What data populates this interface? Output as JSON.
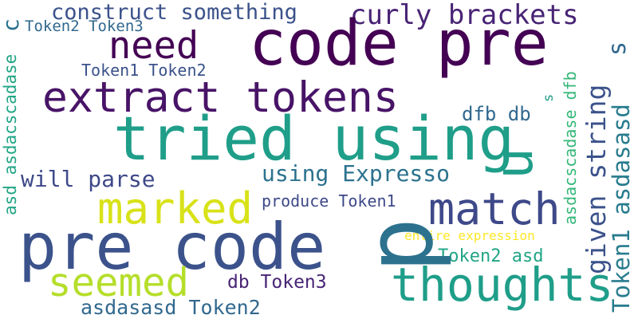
{
  "words": [
    {
      "id": "w1",
      "text": "construct something",
      "color": "#3b528b"
    },
    {
      "id": "w2",
      "text": "curly brackets",
      "color": "#482475"
    },
    {
      "id": "w3",
      "text": "Token2 Token3",
      "color": "#31688e"
    },
    {
      "id": "w4",
      "text": "need",
      "color": "#440154"
    },
    {
      "id": "w5",
      "text": "code pre",
      "color": "#440154"
    },
    {
      "id": "w6",
      "text": "Token1 Token2",
      "color": "#3b528b"
    },
    {
      "id": "w7",
      "text": "extract tokens",
      "color": "#481467"
    },
    {
      "id": "w8",
      "text": "dfb db",
      "color": "#31688e"
    },
    {
      "id": "w9",
      "text": "tried using",
      "color": "#1f9e89"
    },
    {
      "id": "w10",
      "text": "using Expresso",
      "color": "#2c728e"
    },
    {
      "id": "w11",
      "text": "will parse",
      "color": "#3e4989"
    },
    {
      "id": "w12",
      "text": "marked",
      "color": "#d8e219"
    },
    {
      "id": "w13",
      "text": "produce Token1",
      "color": "#3e4989"
    },
    {
      "id": "w14",
      "text": "match",
      "color": "#3e4989"
    },
    {
      "id": "w15",
      "text": "pre code",
      "color": "#3b528b"
    },
    {
      "id": "w16",
      "text": "entire expression",
      "color": "#fde725"
    },
    {
      "id": "w17",
      "text": "Token2 asd",
      "color": "#21a585"
    },
    {
      "id": "w18",
      "text": "seemed",
      "color": "#b5de2b"
    },
    {
      "id": "w19",
      "text": "thoughts",
      "color": "#1f9e89"
    },
    {
      "id": "w20",
      "text": "db Token3",
      "color": "#482475"
    },
    {
      "id": "w21",
      "text": "asdasasd Token2",
      "color": "#31688e"
    },
    {
      "id": "w22",
      "text": "p",
      "color": "#2c728e"
    },
    {
      "id": "w23",
      "text": "asd asdacscadase",
      "color": "#21a585"
    },
    {
      "id": "w24",
      "text": "asdacscadase dfb",
      "color": "#35b779"
    },
    {
      "id": "w25",
      "text": "given string",
      "color": "#3b528b"
    },
    {
      "id": "w26",
      "text": "Token1 asdasasd",
      "color": "#287c8e"
    },
    {
      "id": "w27",
      "text": "c",
      "color": "#2c728e"
    },
    {
      "id": "w28",
      "text": "u",
      "color": "#1f9e89"
    },
    {
      "id": "w29",
      "text": "s",
      "color": "#31688e"
    },
    {
      "id": "w30",
      "text": "s",
      "color": "#1f9e89"
    }
  ]
}
